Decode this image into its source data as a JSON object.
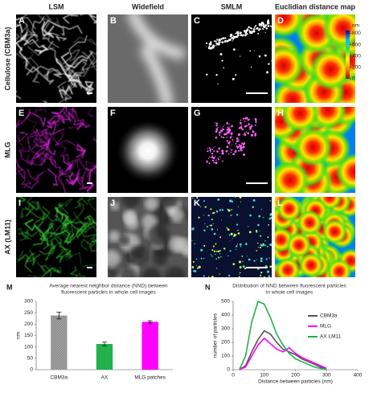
{
  "figure": {
    "columns": [
      "LSM",
      "Widefield",
      "SMLM",
      "Euclidian distance map"
    ],
    "rows": [
      "Cellulose (CBM3a)",
      "MLG",
      "AX (LM11)"
    ],
    "panel_letters": [
      "A",
      "B",
      "C",
      "D",
      "E",
      "F",
      "G",
      "H",
      "I",
      "J",
      "K",
      "L"
    ],
    "colorbar": {
      "unit": "nm",
      "lim": [
        0,
        850
      ],
      "ticks": [
        0,
        200,
        400,
        600,
        800
      ]
    }
  },
  "chart_data": [
    {
      "type": "bar",
      "panel": "M",
      "title": [
        "Average nearest neighbor distance (NND) between",
        "fluorescent particles in whole cell images"
      ],
      "ylabel": "nm",
      "categories": [
        "CBM3a",
        "AX",
        "MLG patches"
      ],
      "values": [
        238,
        113,
        210
      ],
      "errors": [
        15,
        8,
        5
      ],
      "colors": [
        "#8c8c8c",
        "#22b14c",
        "#ff00ff"
      ],
      "ylim": [
        0,
        300
      ],
      "yticks": [
        0,
        50,
        100,
        150,
        200,
        250,
        300
      ],
      "grid": false
    },
    {
      "type": "line",
      "panel": "N",
      "title": [
        "Distribution of NND between fluorescent particles",
        "in whole cell images"
      ],
      "xlabel": "Distance between particles (nm)",
      "ylabel": "number of particles",
      "x": [
        20,
        40,
        60,
        80,
        100,
        120,
        140,
        160,
        180,
        200,
        220,
        240,
        260,
        280,
        300
      ],
      "series": [
        {
          "name": "CBM3a",
          "color": "#555555",
          "values": [
            0,
            30,
            130,
            220,
            285,
            260,
            200,
            150,
            130,
            110,
            80,
            60,
            40,
            20,
            10
          ]
        },
        {
          "name": "MLG",
          "color": "#ff00ff",
          "values": [
            0,
            20,
            100,
            180,
            230,
            190,
            150,
            130,
            160,
            120,
            90,
            70,
            50,
            30,
            10
          ]
        },
        {
          "name": "AX LM11",
          "color": "#22b14c",
          "values": [
            0,
            100,
            350,
            500,
            480,
            380,
            260,
            180,
            120,
            80,
            60,
            40,
            20,
            10,
            0
          ]
        }
      ],
      "xlim": [
        0,
        400
      ],
      "xticks": [
        0,
        100,
        200,
        300,
        400
      ],
      "ylim": [
        0,
        500
      ],
      "yticks": [
        0,
        100,
        200,
        300,
        400,
        500
      ],
      "grid": false,
      "legend": "right"
    }
  ]
}
